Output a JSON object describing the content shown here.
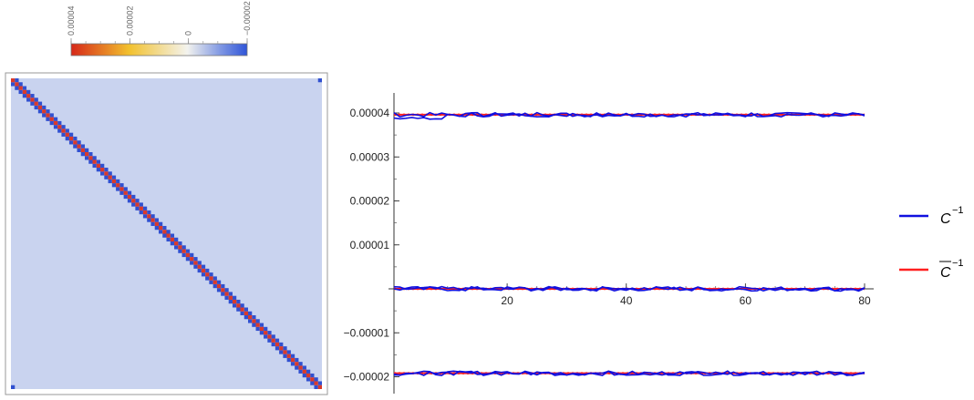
{
  "colorbar": {
    "tick_labels": [
      "0.00004",
      "0.00002",
      "0",
      "−0.00002"
    ],
    "tick_values": [
      4e-05,
      2e-05,
      0,
      -2e-05
    ],
    "range": [
      4e-05,
      -2e-05
    ],
    "colors": [
      "#d62718",
      "#f2c12e",
      "#f3f3ee",
      "#7f97e3",
      "#2f55d8"
    ]
  },
  "chart_data": [
    {
      "type": "heatmap",
      "title": "",
      "size": 80,
      "diagonal_value": 4e-05,
      "offdiagonal_value": -2e-05,
      "corner_value": -2e-05,
      "background_value": 0,
      "colors": {
        "background": "#c9d3ef",
        "diagonal": "#d93a2a",
        "offdiagonal": "#3050d0",
        "frame": "#999999"
      }
    },
    {
      "type": "line",
      "title": "",
      "xlabel": "",
      "ylabel": "",
      "xlim": [
        1,
        80
      ],
      "ylim": [
        -2.2e-05,
        4.5e-05
      ],
      "x_ticks": [
        20,
        40,
        60,
        80
      ],
      "x_tick_labels": [
        "20",
        "40",
        "60",
        "80"
      ],
      "y_ticks": [
        4e-05,
        3e-05,
        2e-05,
        1e-05,
        -1e-05,
        -2e-05
      ],
      "y_tick_labels": [
        "0.00004",
        "0.00003",
        "0.00002",
        "0.00001",
        "−0.00001",
        "−0.00002"
      ],
      "levels": [
        3.96e-05,
        0,
        -1.92e-05
      ],
      "legend_position": "right",
      "series": [
        {
          "name": "C⁻¹",
          "legend_main": "C",
          "legend_sup": "−1",
          "overbar": false,
          "color": "#1010e0",
          "style": "noisy"
        },
        {
          "name": "C̅⁻¹",
          "legend_main": "C",
          "legend_sup": "−1",
          "overbar": true,
          "color": "#ff2020",
          "style": "flat"
        }
      ]
    }
  ]
}
